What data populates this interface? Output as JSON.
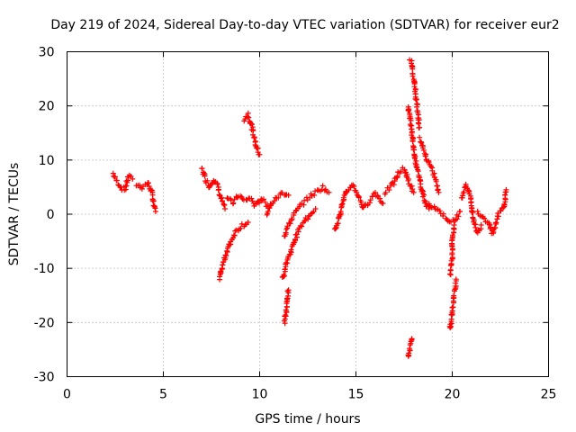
{
  "chart_data": {
    "type": "scatter",
    "title": "Day 219 of 2024, Sidereal Day-to-day VTEC variation (SDTVAR) for receiver eur2",
    "xlabel": "GPS time / hours",
    "ylabel": "SDTVAR / TECUs",
    "xlim": [
      0,
      25
    ],
    "ylim": [
      -30,
      30
    ],
    "xticks": [
      0,
      5,
      10,
      15,
      20,
      25
    ],
    "yticks": [
      -30,
      -20,
      -10,
      0,
      10,
      20,
      30
    ],
    "grid": true,
    "marker": "+",
    "marker_color": "#ff0000",
    "segments": [
      [
        [
          2.4,
          7.5
        ],
        [
          2.6,
          6.0
        ],
        [
          2.8,
          5.0
        ],
        [
          3.0,
          4.5
        ],
        [
          3.2,
          7.0
        ],
        [
          3.4,
          6.5
        ]
      ],
      [
        [
          3.6,
          5.5
        ],
        [
          3.9,
          5.0
        ],
        [
          4.2,
          5.8
        ],
        [
          4.4,
          4.0
        ],
        [
          4.5,
          2.0
        ],
        [
          4.6,
          0.5
        ]
      ],
      [
        [
          7.0,
          8.5
        ],
        [
          7.2,
          6.5
        ],
        [
          7.4,
          5.0
        ],
        [
          7.6,
          6.5
        ],
        [
          7.8,
          5.5
        ],
        [
          8.0,
          3.0
        ],
        [
          8.2,
          1.0
        ]
      ],
      [
        [
          7.9,
          -12.0
        ],
        [
          8.1,
          -9.0
        ],
        [
          8.3,
          -7.0
        ],
        [
          8.5,
          -5.0
        ],
        [
          8.8,
          -3.0
        ],
        [
          9.1,
          -2.0
        ],
        [
          9.4,
          -1.5
        ]
      ],
      [
        [
          8.3,
          3.0
        ],
        [
          8.6,
          2.0
        ],
        [
          8.9,
          3.5
        ],
        [
          9.2,
          2.5
        ],
        [
          9.5,
          3.0
        ],
        [
          9.8,
          1.5
        ],
        [
          10.1,
          3.0
        ],
        [
          10.4,
          1.5
        ]
      ],
      [
        [
          9.2,
          17.5
        ],
        [
          9.4,
          18.5
        ],
        [
          9.6,
          16.0
        ],
        [
          9.8,
          13.0
        ],
        [
          10.0,
          11.0
        ]
      ],
      [
        [
          10.4,
          0.0
        ],
        [
          10.6,
          2.0
        ],
        [
          10.9,
          3.0
        ],
        [
          11.2,
          4.0
        ],
        [
          11.5,
          3.5
        ]
      ],
      [
        [
          11.3,
          -20.0
        ],
        [
          11.4,
          -17.0
        ],
        [
          11.5,
          -14.0
        ]
      ],
      [
        [
          11.2,
          -12.0
        ],
        [
          11.4,
          -9.0
        ],
        [
          11.6,
          -7.0
        ],
        [
          11.8,
          -5.0
        ],
        [
          12.0,
          -3.0
        ],
        [
          12.3,
          -1.5
        ],
        [
          12.6,
          0.0
        ],
        [
          12.9,
          1.0
        ]
      ],
      [
        [
          11.3,
          -4.0
        ],
        [
          11.5,
          -2.0
        ],
        [
          11.8,
          0.0
        ],
        [
          12.1,
          1.5
        ],
        [
          12.5,
          3.0
        ],
        [
          12.9,
          4.0
        ],
        [
          13.3,
          5.0
        ],
        [
          13.6,
          4.0
        ]
      ],
      [
        [
          13.9,
          -3.0
        ],
        [
          14.1,
          -1.0
        ],
        [
          14.3,
          2.0
        ],
        [
          14.5,
          4.0
        ],
        [
          14.8,
          5.5
        ],
        [
          15.1,
          3.5
        ],
        [
          15.4,
          1.0
        ],
        [
          15.7,
          2.5
        ],
        [
          16.0,
          4.0
        ],
        [
          16.4,
          2.0
        ]
      ],
      [
        [
          16.5,
          4.0
        ],
        [
          16.8,
          5.0
        ],
        [
          17.0,
          6.0
        ],
        [
          17.2,
          7.5
        ],
        [
          17.5,
          8.5
        ],
        [
          17.8,
          5.5
        ],
        [
          18.0,
          4.0
        ]
      ],
      [
        [
          17.7,
          -26.5
        ],
        [
          17.8,
          -25.0
        ],
        [
          17.9,
          -23.0
        ]
      ],
      [
        [
          17.8,
          28.5
        ],
        [
          17.9,
          28.0
        ],
        [
          18.0,
          25.0
        ],
        [
          18.1,
          22.0
        ],
        [
          18.2,
          19.0
        ],
        [
          18.3,
          16.0
        ]
      ],
      [
        [
          17.7,
          20.0
        ],
        [
          17.8,
          18.0
        ],
        [
          17.9,
          15.0
        ],
        [
          18.0,
          12.0
        ],
        [
          18.1,
          10.0
        ],
        [
          18.2,
          8.0
        ],
        [
          18.4,
          5.0
        ],
        [
          18.6,
          2.0
        ],
        [
          18.8,
          1.0
        ]
      ],
      [
        [
          18.3,
          14.0
        ],
        [
          18.5,
          12.0
        ],
        [
          18.7,
          10.0
        ],
        [
          18.9,
          8.5
        ],
        [
          19.1,
          7.0
        ],
        [
          19.3,
          4.0
        ]
      ],
      [
        [
          18.8,
          2.0
        ],
        [
          19.2,
          1.0
        ],
        [
          19.5,
          0.0
        ],
        [
          19.8,
          -1.0
        ],
        [
          20.1,
          -1.5
        ],
        [
          20.4,
          0.5
        ]
      ],
      [
        [
          19.9,
          -21.0
        ],
        [
          20.0,
          -18.0
        ],
        [
          20.1,
          -15.0
        ],
        [
          20.2,
          -12.0
        ]
      ],
      [
        [
          19.9,
          -11.0
        ],
        [
          20.0,
          -8.0
        ],
        [
          20.0,
          -5.0
        ],
        [
          20.1,
          -2.0
        ]
      ],
      [
        [
          20.5,
          3.0
        ],
        [
          20.7,
          5.5
        ],
        [
          20.9,
          4.0
        ],
        [
          21.1,
          -1.0
        ],
        [
          21.3,
          -3.5
        ],
        [
          21.5,
          -2.0
        ]
      ],
      [
        [
          21.3,
          0.5
        ],
        [
          21.6,
          -0.5
        ],
        [
          21.9,
          -1.5
        ],
        [
          22.1,
          -3.5
        ],
        [
          22.4,
          0.0
        ],
        [
          22.7,
          1.5
        ],
        [
          22.8,
          4.5
        ]
      ]
    ]
  }
}
